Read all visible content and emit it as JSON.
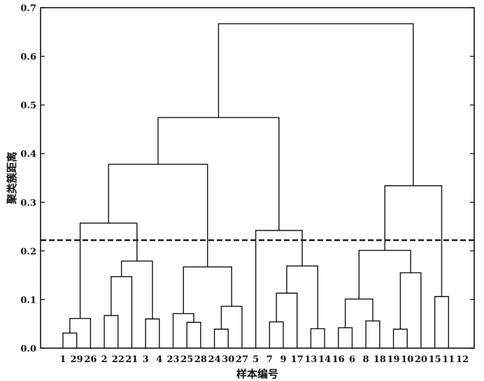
{
  "chart_data": {
    "type": "dendrogram",
    "title": "",
    "xlabel": "样本编号",
    "ylabel": "聚类簇距离",
    "ylim": [
      0,
      0.7
    ],
    "yticks": [
      "0.0",
      "0.1",
      "0.2",
      "0.3",
      "0.4",
      "0.5",
      "0.6",
      "0.7"
    ],
    "leaf_order": [
      "1",
      "29",
      "26",
      "2",
      "22",
      "21",
      "3",
      "4",
      "23",
      "25",
      "28",
      "24",
      "30",
      "27",
      "5",
      "7",
      "9",
      "17",
      "13",
      "14",
      "16",
      "6",
      "8",
      "18",
      "19",
      "10",
      "20",
      "15",
      "11",
      "12"
    ],
    "merges": [
      {
        "left": "L0",
        "right": "L1",
        "height": 0.031
      },
      {
        "left": "M0",
        "right": "L2",
        "height": 0.061
      },
      {
        "left": "L3",
        "right": "L4",
        "height": 0.067
      },
      {
        "left": "M2",
        "right": "L5",
        "height": 0.147
      },
      {
        "left": "L6",
        "right": "L7",
        "height": 0.06
      },
      {
        "left": "M3",
        "right": "M4",
        "height": 0.179
      },
      {
        "left": "M1",
        "right": "M5",
        "height": 0.257
      },
      {
        "left": "L9",
        "right": "L10",
        "height": 0.053
      },
      {
        "left": "L8",
        "right": "M7",
        "height": 0.071
      },
      {
        "left": "L11",
        "right": "L12",
        "height": 0.039
      },
      {
        "left": "M9",
        "right": "L13",
        "height": 0.086
      },
      {
        "left": "M8",
        "right": "M10",
        "height": 0.167
      },
      {
        "left": "M6",
        "right": "M11",
        "height": 0.378
      },
      {
        "left": "L15",
        "right": "L16",
        "height": 0.054
      },
      {
        "left": "L18",
        "right": "L19",
        "height": 0.04
      },
      {
        "left": "M13",
        "right": "L17",
        "height": 0.113
      },
      {
        "left": "M15",
        "right": "M14",
        "height": 0.169
      },
      {
        "left": "L14",
        "right": "M16",
        "height": 0.242
      },
      {
        "left": "M12",
        "right": "M17",
        "height": 0.474
      },
      {
        "left": "L20",
        "right": "L21",
        "height": 0.042
      },
      {
        "left": "L22",
        "right": "L23",
        "height": 0.056
      },
      {
        "left": "M19",
        "right": "M20",
        "height": 0.101
      },
      {
        "left": "L24",
        "right": "L25",
        "height": 0.039
      },
      {
        "left": "M22",
        "right": "L26",
        "height": 0.155
      },
      {
        "left": "M21",
        "right": "M23",
        "height": 0.201
      },
      {
        "left": "L27",
        "right": "L28",
        "height": 0.106
      },
      {
        "left": "M24",
        "right": "M25",
        "height": 0.334
      },
      {
        "left": "M18",
        "right": "M26",
        "height": 0.667
      }
    ],
    "cut_line": {
      "y": 0.222,
      "style": "dashed"
    },
    "grid": false,
    "legend": "none"
  }
}
